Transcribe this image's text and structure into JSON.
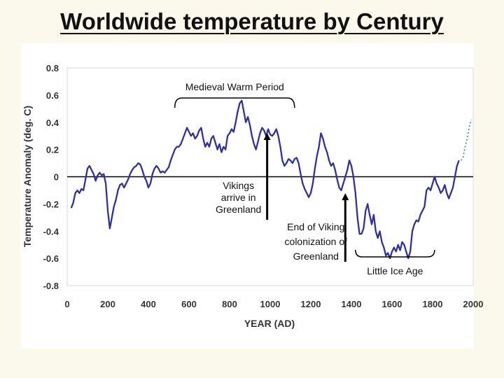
{
  "slide": {
    "title": "Worldwide temperature by Century"
  },
  "chart_data": {
    "type": "line",
    "title": "",
    "xlabel": "YEAR (AD)",
    "ylabel": "Temperature Anomaly (deg. C)",
    "xlim": [
      0,
      2000
    ],
    "ylim": [
      -0.8,
      0.8
    ],
    "x_ticks": [
      "0",
      "200",
      "400",
      "600",
      "800",
      "1000",
      "1200",
      "1400",
      "1600",
      "1800",
      "2000"
    ],
    "y_ticks": [
      "0.8",
      "0.6",
      "0.4",
      "0.2",
      "0",
      "-0.2",
      "-0.4",
      "-0.6",
      "-0.8"
    ],
    "grid": false,
    "line_color": "#2f2fa6",
    "recent_color": "#3c8f5a",
    "series": [
      {
        "values": [
          [
            20,
            -0.23
          ],
          [
            30,
            -0.19
          ],
          [
            40,
            -0.12
          ],
          [
            50,
            -0.1
          ],
          [
            60,
            -0.12
          ],
          [
            70,
            -0.09
          ],
          [
            80,
            -0.1
          ],
          [
            90,
            -0.02
          ],
          [
            100,
            0.06
          ],
          [
            110,
            0.08
          ],
          [
            120,
            0.05
          ],
          [
            130,
            0.02
          ],
          [
            140,
            -0.03
          ],
          [
            150,
            0.01
          ],
          [
            160,
            0.03
          ],
          [
            170,
            0.01
          ],
          [
            180,
            0.02
          ],
          [
            190,
            -0.05
          ],
          [
            200,
            -0.25
          ],
          [
            210,
            -0.38
          ],
          [
            220,
            -0.3
          ],
          [
            230,
            -0.22
          ],
          [
            240,
            -0.17
          ],
          [
            250,
            -0.1
          ],
          [
            260,
            -0.06
          ],
          [
            270,
            -0.05
          ],
          [
            280,
            -0.08
          ],
          [
            290,
            -0.05
          ],
          [
            300,
            -0.02
          ],
          [
            310,
            0.02
          ],
          [
            320,
            0.05
          ],
          [
            330,
            0.07
          ],
          [
            340,
            0.08
          ],
          [
            350,
            0.1
          ],
          [
            360,
            0.09
          ],
          [
            370,
            0.05
          ],
          [
            380,
            0.0
          ],
          [
            390,
            -0.03
          ],
          [
            400,
            -0.08
          ],
          [
            410,
            -0.05
          ],
          [
            420,
            0.02
          ],
          [
            430,
            0.06
          ],
          [
            440,
            0.08
          ],
          [
            450,
            0.06
          ],
          [
            460,
            0.03
          ],
          [
            470,
            0.04
          ],
          [
            480,
            0.03
          ],
          [
            490,
            0.05
          ],
          [
            500,
            0.07
          ],
          [
            510,
            0.12
          ],
          [
            520,
            0.16
          ],
          [
            530,
            0.2
          ],
          [
            540,
            0.22
          ],
          [
            550,
            0.22
          ],
          [
            560,
            0.24
          ],
          [
            570,
            0.28
          ],
          [
            580,
            0.32
          ],
          [
            590,
            0.36
          ],
          [
            600,
            0.33
          ],
          [
            610,
            0.3
          ],
          [
            620,
            0.32
          ],
          [
            630,
            0.28
          ],
          [
            640,
            0.3
          ],
          [
            650,
            0.34
          ],
          [
            660,
            0.36
          ],
          [
            670,
            0.28
          ],
          [
            680,
            0.22
          ],
          [
            690,
            0.25
          ],
          [
            700,
            0.22
          ],
          [
            710,
            0.28
          ],
          [
            720,
            0.3
          ],
          [
            730,
            0.25
          ],
          [
            740,
            0.2
          ],
          [
            750,
            0.24
          ],
          [
            760,
            0.18
          ],
          [
            770,
            0.22
          ],
          [
            780,
            0.2
          ],
          [
            790,
            0.3
          ],
          [
            800,
            0.32
          ],
          [
            810,
            0.35
          ],
          [
            820,
            0.33
          ],
          [
            830,
            0.4
          ],
          [
            840,
            0.48
          ],
          [
            850,
            0.54
          ],
          [
            860,
            0.56
          ],
          [
            870,
            0.48
          ],
          [
            880,
            0.4
          ],
          [
            890,
            0.44
          ],
          [
            900,
            0.38
          ],
          [
            910,
            0.3
          ],
          [
            920,
            0.24
          ],
          [
            930,
            0.2
          ],
          [
            940,
            0.26
          ],
          [
            950,
            0.32
          ],
          [
            960,
            0.36
          ],
          [
            970,
            0.34
          ],
          [
            980,
            0.3
          ],
          [
            990,
            0.35
          ],
          [
            1000,
            0.31
          ],
          [
            1010,
            0.3
          ],
          [
            1020,
            0.32
          ],
          [
            1030,
            0.35
          ],
          [
            1040,
            0.3
          ],
          [
            1050,
            0.22
          ],
          [
            1060,
            0.12
          ],
          [
            1070,
            0.08
          ],
          [
            1080,
            0.1
          ],
          [
            1090,
            0.13
          ],
          [
            1100,
            0.12
          ],
          [
            1110,
            0.1
          ],
          [
            1120,
            0.13
          ],
          [
            1130,
            0.14
          ],
          [
            1140,
            0.1
          ],
          [
            1150,
            0.02
          ],
          [
            1160,
            -0.05
          ],
          [
            1170,
            -0.09
          ],
          [
            1180,
            -0.12
          ],
          [
            1190,
            -0.15
          ],
          [
            1200,
            -0.12
          ],
          [
            1210,
            -0.05
          ],
          [
            1220,
            0.06
          ],
          [
            1230,
            0.15
          ],
          [
            1240,
            0.22
          ],
          [
            1250,
            0.32
          ],
          [
            1260,
            0.28
          ],
          [
            1270,
            0.22
          ],
          [
            1280,
            0.18
          ],
          [
            1290,
            0.12
          ],
          [
            1300,
            0.08
          ],
          [
            1310,
            0.1
          ],
          [
            1320,
            0.05
          ],
          [
            1330,
            -0.02
          ],
          [
            1340,
            -0.08
          ],
          [
            1350,
            -0.1
          ],
          [
            1360,
            -0.05
          ],
          [
            1370,
            0.0
          ],
          [
            1380,
            0.05
          ],
          [
            1390,
            0.12
          ],
          [
            1400,
            0.08
          ],
          [
            1410,
            0.0
          ],
          [
            1420,
            -0.12
          ],
          [
            1430,
            -0.3
          ],
          [
            1440,
            -0.42
          ],
          [
            1450,
            -0.42
          ],
          [
            1460,
            -0.38
          ],
          [
            1470,
            -0.25
          ],
          [
            1480,
            -0.2
          ],
          [
            1490,
            -0.28
          ],
          [
            1500,
            -0.35
          ],
          [
            1510,
            -0.28
          ],
          [
            1520,
            -0.4
          ],
          [
            1530,
            -0.45
          ],
          [
            1540,
            -0.4
          ],
          [
            1550,
            -0.48
          ],
          [
            1560,
            -0.52
          ],
          [
            1570,
            -0.58
          ],
          [
            1580,
            -0.56
          ],
          [
            1590,
            -0.6
          ],
          [
            1600,
            -0.55
          ],
          [
            1610,
            -0.52
          ],
          [
            1620,
            -0.55
          ],
          [
            1630,
            -0.5
          ],
          [
            1640,
            -0.54
          ],
          [
            1650,
            -0.48
          ],
          [
            1660,
            -0.5
          ],
          [
            1670,
            -0.55
          ],
          [
            1680,
            -0.6
          ],
          [
            1690,
            -0.55
          ],
          [
            1700,
            -0.4
          ],
          [
            1710,
            -0.35
          ],
          [
            1720,
            -0.32
          ],
          [
            1730,
            -0.33
          ],
          [
            1740,
            -0.28
          ],
          [
            1750,
            -0.25
          ],
          [
            1760,
            -0.22
          ],
          [
            1770,
            -0.1
          ],
          [
            1780,
            -0.08
          ],
          [
            1790,
            -0.1
          ],
          [
            1800,
            -0.05
          ],
          [
            1810,
            0.0
          ],
          [
            1820,
            -0.05
          ],
          [
            1830,
            -0.08
          ],
          [
            1840,
            -0.12
          ],
          [
            1850,
            -0.1
          ],
          [
            1860,
            -0.06
          ],
          [
            1870,
            -0.12
          ],
          [
            1880,
            -0.16
          ],
          [
            1890,
            -0.12
          ],
          [
            1900,
            -0.08
          ],
          [
            1910,
            0.0
          ],
          [
            1920,
            0.08
          ],
          [
            1930,
            0.12
          ]
        ]
      },
      {
        "style": "dotted",
        "values": [
          [
            1940,
            0.12
          ],
          [
            1950,
            0.14
          ],
          [
            1960,
            0.22
          ],
          [
            1970,
            0.28
          ],
          [
            1980,
            0.36
          ],
          [
            1990,
            0.42
          ]
        ]
      }
    ],
    "annotations": {
      "medieval": {
        "lines": [
          "Medieval Warm Period"
        ],
        "x_range": [
          530,
          1120
        ]
      },
      "little_ice_age": {
        "lines": [
          "Little Ice Age"
        ],
        "x_range": [
          1420,
          1810
        ]
      },
      "vikings": {
        "lines": [
          "Vikings",
          "arrive in",
          "Greenland"
        ],
        "arrow_x": 985
      },
      "end_viking": {
        "lines": [
          "End of Viking",
          "colonization of",
          "Greenland"
        ],
        "arrow_x": 1370
      }
    }
  }
}
